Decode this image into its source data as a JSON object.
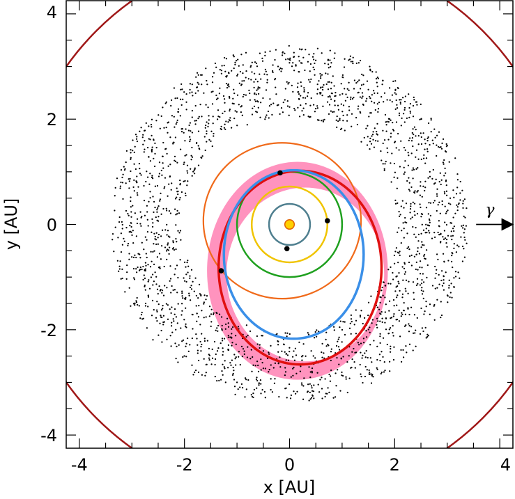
{
  "chart_data": {
    "type": "scatter",
    "title": "",
    "xlabel": "x [AU]",
    "ylabel": "y [AU]",
    "xlim": [
      -4.25,
      4.25
    ],
    "ylim": [
      -4.25,
      4.25
    ],
    "xticks": [
      -4,
      -2,
      0,
      2,
      4
    ],
    "yticks": [
      -4,
      -2,
      0,
      2,
      4
    ],
    "xtick_labels": [
      "-4",
      "-2",
      "0",
      "2",
      "4"
    ],
    "ytick_labels": [
      "-4",
      "-2",
      "0",
      "2",
      "4"
    ],
    "minor_tick_step": 0.5,
    "grid": false,
    "legend": "none",
    "direction_arrow": {
      "label": "γ",
      "x_start": 3.55,
      "x_end": 4.25,
      "y": 0
    },
    "sun": {
      "x": 0,
      "y": 0,
      "r": 0.09,
      "color": "#ffd000",
      "edge": "#e06000"
    },
    "orbits": [
      {
        "kind": "circle",
        "cx": 0,
        "cy": 0,
        "r": 0.39,
        "color": "#4f7f8f",
        "width": 2.5
      },
      {
        "kind": "circle",
        "cx": 0,
        "cy": 0,
        "r": 0.72,
        "color": "#f0c400",
        "width": 2.5
      },
      {
        "kind": "circle",
        "cx": 0,
        "cy": 0,
        "r": 1.0,
        "color": "#1fa01f",
        "width": 2.5
      },
      {
        "kind": "ellipse",
        "cx": -0.14,
        "cy": 0.07,
        "rx": 1.5,
        "ry": 1.48,
        "color": "#f06a1a",
        "width": 2.2
      },
      {
        "kind": "ellipse",
        "cx": 0.2,
        "cy": -0.82,
        "rx": 1.55,
        "ry": 1.84,
        "color": "#e01010",
        "width": 3.5
      },
      {
        "kind": "ellipse",
        "cx": 0.08,
        "cy": -0.57,
        "rx": 1.33,
        "ry": 1.6,
        "color": "#3a8fe8",
        "width": 3.5
      },
      {
        "kind": "circle",
        "cx": 0,
        "cy": 0,
        "r": 5.2,
        "color": "#a01818",
        "width": 2.5
      }
    ],
    "uncertainty_band": {
      "color": "#ff6fa8",
      "opacity": 0.75,
      "inner": {
        "cx": 0.3,
        "cy": -0.95,
        "rx": 1.5,
        "ry": 1.65
      },
      "outer": {
        "cx": 0.15,
        "cy": -0.88,
        "rx": 1.72,
        "ry": 2.07
      }
    },
    "bodies": [
      {
        "x": -0.05,
        "y": -0.46,
        "color": "#000000",
        "r": 0.05
      },
      {
        "x": 0.72,
        "y": 0.07,
        "color": "#000000",
        "r": 0.05
      },
      {
        "x": -0.18,
        "y": 0.98,
        "color": "#000000",
        "r": 0.05
      },
      {
        "x": -1.3,
        "y": -0.88,
        "color": "#000000",
        "r": 0.05
      }
    ],
    "asteroid_belt": {
      "count": 2200,
      "r_min": 2.05,
      "r_max": 3.4,
      "center": [
        0,
        0
      ],
      "y_max": 3.42,
      "y_min": -3.35,
      "color": "#000000",
      "dot_r": 0.015
    }
  }
}
